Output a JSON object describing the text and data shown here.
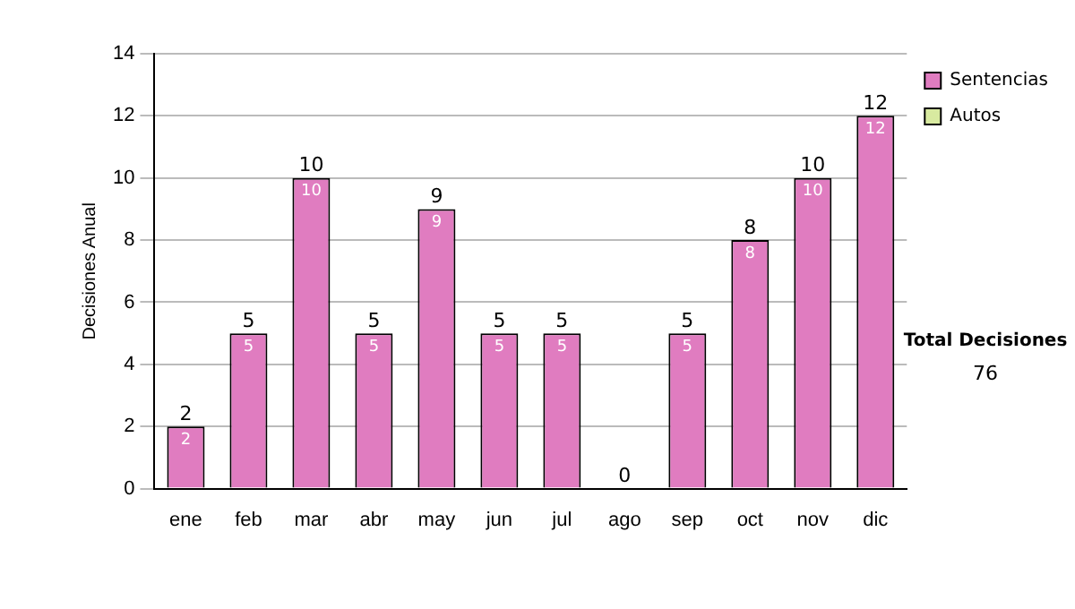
{
  "chart_data": {
    "type": "bar",
    "stacked": true,
    "ylabel": "Decisiones Anual",
    "categories": [
      "ene",
      "feb",
      "mar",
      "abr",
      "may",
      "jun",
      "jul",
      "ago",
      "sep",
      "oct",
      "nov",
      "dic"
    ],
    "series": [
      {
        "name": "Sentencias",
        "color": "#e07cc0",
        "values": [
          2,
          5,
          10,
          5,
          9,
          5,
          5,
          0,
          5,
          8,
          10,
          12
        ],
        "value_labels": [
          "2",
          "5",
          "10",
          "5",
          "9",
          "5",
          "5",
          null,
          "5",
          "8",
          "10",
          "12"
        ]
      },
      {
        "name": "Autos",
        "color": "#d8eaa0",
        "values": [
          0,
          0,
          0,
          0,
          0,
          0,
          0,
          0,
          0,
          0,
          0,
          0
        ]
      }
    ],
    "totals": [
      "2",
      "5",
      "10",
      "5",
      "9",
      "5",
      "5",
      "0",
      "5",
      "8",
      "10",
      "12"
    ],
    "ylim": [
      0,
      14
    ],
    "yticks": [
      0,
      2,
      4,
      6,
      8,
      10,
      12,
      14
    ],
    "grid": "y",
    "legend": "right",
    "annotations": [
      "Total Decisiones",
      "76"
    ]
  }
}
